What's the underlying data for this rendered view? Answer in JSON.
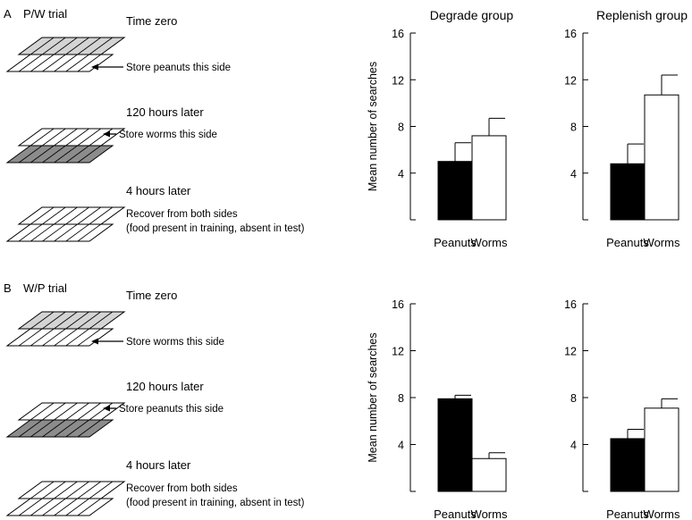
{
  "colors": {
    "ink": "#000000",
    "tray_light": "#d4d4d4",
    "tray_dark": "#8c8c8c",
    "peanuts_bar": "#000000",
    "worms_bar": "#ffffff"
  },
  "panels": [
    {
      "letter": "A",
      "trial": "P/W trial",
      "steps": [
        {
          "label": "Time zero",
          "note": [
            "Store peanuts this side"
          ],
          "shaded": "back",
          "arrow": true
        },
        {
          "label": "120 hours later",
          "note": [
            "Store worms this side"
          ],
          "shaded": "front",
          "arrow": true
        },
        {
          "label": "4 hours later",
          "note": [
            "Recover from both sides",
            "(food present in training, absent in test)"
          ],
          "shaded": "none",
          "arrow": false
        }
      ]
    },
    {
      "letter": "B",
      "trial": "W/P trial",
      "steps": [
        {
          "label": "Time zero",
          "note": [
            "Store worms this side"
          ],
          "shaded": "back",
          "arrow": true
        },
        {
          "label": "120 hours later",
          "note": [
            "Store peanuts this side"
          ],
          "shaded": "front",
          "arrow": true
        },
        {
          "label": "4 hours later",
          "note": [
            "Recover from both sides",
            "(food present in training, absent in test)"
          ],
          "shaded": "none",
          "arrow": false
        }
      ]
    }
  ],
  "chart_data": [
    {
      "type": "bar",
      "title": "Degrade group",
      "ylabel": "Mean number of searches",
      "categories": [
        "Peanuts",
        "Worms"
      ],
      "values": [
        5.0,
        7.2
      ],
      "errors": [
        1.6,
        1.5
      ],
      "ylim": [
        0,
        16
      ],
      "yticks": [
        4,
        8,
        12,
        16
      ],
      "colors": [
        "#000000",
        "#ffffff"
      ]
    },
    {
      "type": "bar",
      "title": "Replenish group",
      "ylabel": "",
      "categories": [
        "Peanuts",
        "Worms"
      ],
      "values": [
        4.8,
        10.7
      ],
      "errors": [
        1.7,
        1.7
      ],
      "ylim": [
        0,
        16
      ],
      "yticks": [
        4,
        8,
        12,
        16
      ],
      "colors": [
        "#000000",
        "#ffffff"
      ]
    },
    {
      "type": "bar",
      "title": "",
      "ylabel": "Mean number of searches",
      "categories": [
        "Peanuts",
        "Worms"
      ],
      "values": [
        7.9,
        2.8
      ],
      "errors": [
        0.3,
        0.5
      ],
      "ylim": [
        0,
        16
      ],
      "yticks": [
        4,
        8,
        12,
        16
      ],
      "colors": [
        "#000000",
        "#ffffff"
      ]
    },
    {
      "type": "bar",
      "title": "",
      "ylabel": "",
      "categories": [
        "Peanuts",
        "Worms"
      ],
      "values": [
        4.5,
        7.1
      ],
      "errors": [
        0.8,
        0.8
      ],
      "ylim": [
        0,
        16
      ],
      "yticks": [
        4,
        8,
        12,
        16
      ],
      "colors": [
        "#000000",
        "#ffffff"
      ]
    }
  ]
}
